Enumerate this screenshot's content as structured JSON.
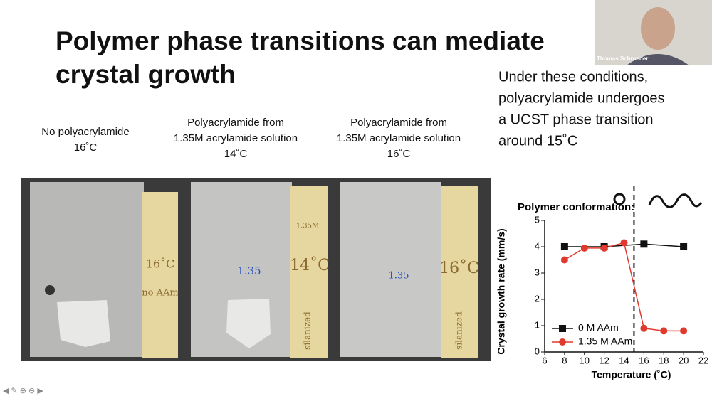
{
  "slide": {
    "title_lines": [
      "Polymer phase transitions can mediate",
      "crystal growth"
    ],
    "side_text": [
      "Under these conditions,",
      "polyacrylamide undergoes",
      "a UCST phase transition",
      "around 15˚C"
    ],
    "columns": [
      {
        "lines": [
          "No polyacrylamide",
          "16˚C"
        ]
      },
      {
        "lines": [
          "Polyacrylamide from",
          "1.35M acrylamide solution",
          "14˚C"
        ]
      },
      {
        "lines": [
          "Polyacrylamide from",
          "1.35M acrylamide solution",
          "16˚C"
        ]
      }
    ],
    "photo_labels": [
      "16˚C",
      "no AAm",
      "1.35",
      "1.35M",
      "14˚C",
      "silanized",
      "1.35",
      "16˚C",
      "silanized"
    ],
    "webcam_name": "Thomas Schroeder"
  },
  "chart_data": {
    "type": "line",
    "annotation": "Polymer conformation:",
    "xlabel": "Temperature (˚C)",
    "ylabel": "Crystal growth rate (mm/s)",
    "xlim": [
      6,
      22
    ],
    "xticks": [
      6,
      8,
      10,
      12,
      14,
      16,
      18,
      20,
      22
    ],
    "ylim": [
      0,
      5
    ],
    "yticks": [
      0,
      1,
      2,
      3,
      4,
      5
    ],
    "vline": 15,
    "series": [
      {
        "name": "0 M AAm",
        "color": "#111111",
        "marker": "square",
        "x": [
          8,
          12,
          16,
          20
        ],
        "values": [
          4.0,
          4.0,
          4.1,
          4.0
        ]
      },
      {
        "name": "1.35 M AAm",
        "color": "#e03a2e",
        "marker": "circle",
        "x": [
          8,
          10,
          12,
          14,
          16,
          18,
          20
        ],
        "values": [
          3.5,
          3.95,
          3.95,
          4.15,
          0.9,
          0.8,
          0.8
        ]
      }
    ]
  }
}
